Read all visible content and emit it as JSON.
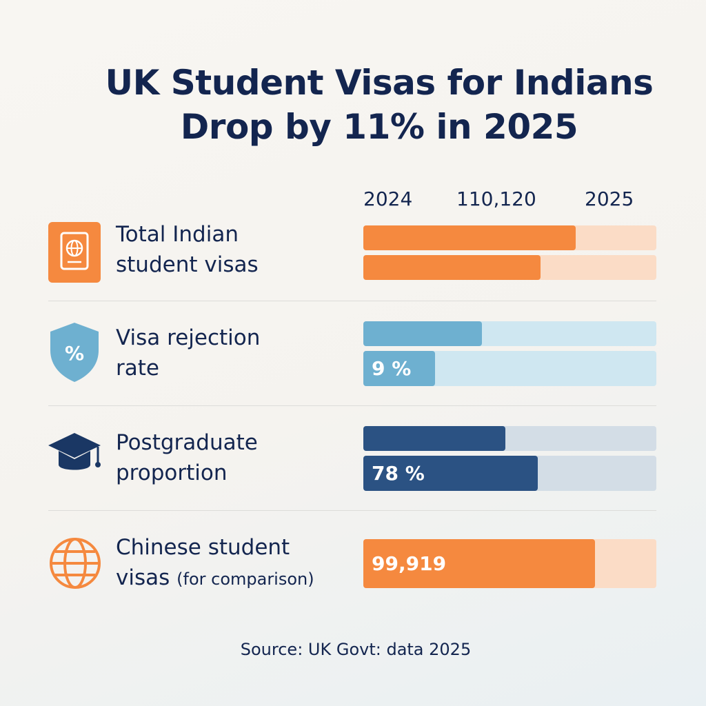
{
  "title_line1": "UK Student Visas for Indians",
  "title_line2": "Drop by 11% in 2025",
  "header": {
    "year_left": "2024",
    "value_center": "110,120",
    "year_right": "2025"
  },
  "source": "Source: UK Govt: data 2025",
  "colors": {
    "orange": "#f5893f",
    "orange_light": "#fbdcc6",
    "blue": "#6eb0d0",
    "blue_light": "#cfe7f1",
    "navy": "#2b5283",
    "navy_light": "#d3dde6"
  },
  "chart_data": {
    "type": "bar",
    "title": "UK Student Visas for Indians Drop by 11% in 2025",
    "rows": [
      {
        "label_line1": "Total Indian",
        "label_line2": "student visas",
        "icon": "passport-icon",
        "color": "orange",
        "bars": [
          {
            "fraction": 0.725,
            "label": ""
          },
          {
            "fraction": 0.605,
            "label": ""
          }
        ]
      },
      {
        "label_line1": "Visa rejection",
        "label_line2": "rate",
        "icon": "shield-percent-icon",
        "color": "blue",
        "bars": [
          {
            "fraction": 0.405,
            "label": ""
          },
          {
            "fraction": 0.245,
            "label": "9 %"
          }
        ]
      },
      {
        "label_line1": "Postgraduate",
        "label_line2": "proportion",
        "icon": "graduation-cap-icon",
        "color": "navy",
        "bars": [
          {
            "fraction": 0.485,
            "label": ""
          },
          {
            "fraction": 0.595,
            "label": "78 %"
          }
        ]
      },
      {
        "label_line1": "Chinese student",
        "label_line2": "visas",
        "label_note": "(for comparison)",
        "icon": "globe-icon",
        "color": "orange",
        "bars": [
          {
            "fraction": 0.79,
            "label": "99,919"
          }
        ]
      }
    ]
  }
}
